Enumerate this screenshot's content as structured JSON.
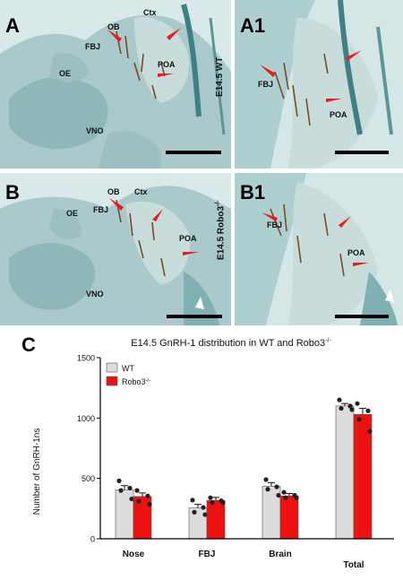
{
  "figure": {
    "panels": [
      {
        "id": "A",
        "labels": {
          "ctx": "Ctx",
          "ob": "OB",
          "fbj": "FBJ",
          "oe": "OE",
          "poa": "POA",
          "vno": "VNO"
        },
        "side_label": "E14.5 WT"
      },
      {
        "id": "A1",
        "labels": {
          "fbj": "FBJ",
          "poa": "POA"
        }
      },
      {
        "id": "B",
        "labels": {
          "ob": "OB",
          "ctx": "Ctx",
          "fbj": "FBJ",
          "oe": "OE",
          "poa": "POA",
          "vno": "VNO"
        },
        "side_label": "E14.5 Robo3",
        "side_label_sup": "-/-"
      },
      {
        "id": "B1",
        "labels": {
          "fbj": "FBJ",
          "poa": "POA"
        }
      }
    ],
    "panel_c_letter": "C",
    "colors": {
      "wt": "#dcdcdc",
      "robo3": "#ee1111",
      "tissue": "#8fb7b9",
      "stain": "#7a4a2a",
      "arrow": "#e81c1c"
    }
  },
  "chart_data": {
    "type": "bar",
    "title": "E14.5 GnRH-1 distribution in WT and Robo3",
    "title_sup": "-/-",
    "ylabel": "Number of GnRH-1ns",
    "categories": [
      "Nose",
      "FBJ",
      "Brain",
      "Total"
    ],
    "ylim": [
      0,
      1500
    ],
    "yticks": [
      0,
      500,
      1000,
      1500
    ],
    "legend": {
      "placement": "top-left",
      "entries": [
        {
          "label": "WT"
        },
        {
          "label": "Robo3",
          "sup": "-/-"
        }
      ]
    },
    "series": [
      {
        "name": "WT",
        "values": [
          405,
          255,
          435,
          1100
        ],
        "errors": [
          35,
          30,
          30,
          20
        ],
        "points": [
          [
            480,
            420,
            400,
            330
          ],
          [
            320,
            260,
            220,
            200
          ],
          [
            490,
            430,
            410,
            360
          ],
          [
            1150,
            1100,
            1080,
            1070
          ]
        ]
      },
      {
        "name": "Robo3-/-",
        "values": [
          350,
          318,
          355,
          1030
        ],
        "errors": [
          30,
          25,
          20,
          50
        ],
        "points": [
          [
            400,
            355,
            310,
            285
          ],
          [
            340,
            315,
            300,
            300
          ],
          [
            385,
            360,
            340,
            340
          ],
          [
            1120,
            1060,
            990,
            890
          ]
        ]
      }
    ]
  }
}
